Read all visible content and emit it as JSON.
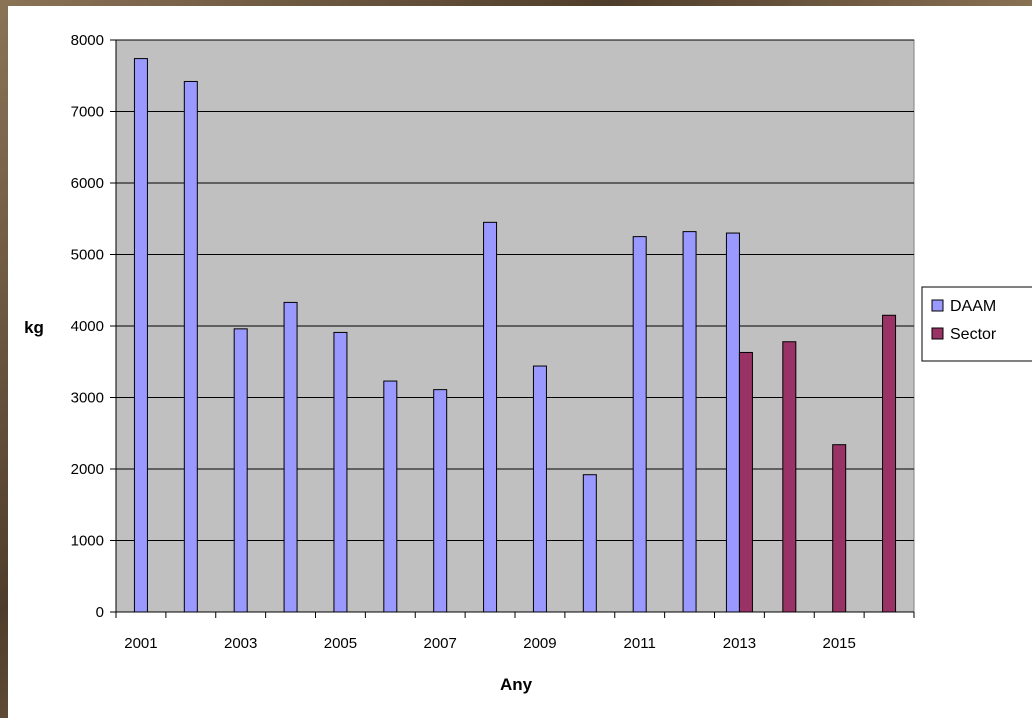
{
  "chart_data": {
    "type": "bar",
    "xlabel": "Any",
    "ylabel": "kg",
    "ylim": [
      0,
      8000
    ],
    "yticks": [
      0,
      1000,
      2000,
      3000,
      4000,
      5000,
      6000,
      7000,
      8000
    ],
    "categories": [
      "2001",
      "2002",
      "2003",
      "2004",
      "2005",
      "2006",
      "2007",
      "2008",
      "2009",
      "2010",
      "2011",
      "2012",
      "2013",
      "2014",
      "2015",
      "2016"
    ],
    "xtick_labels": [
      "2001",
      "2003",
      "2005",
      "2007",
      "2009",
      "2011",
      "2013",
      "2015"
    ],
    "series": [
      {
        "name": "DAAM",
        "color": "#9999ff",
        "values": [
          7740,
          7420,
          3960,
          4330,
          3910,
          3230,
          3110,
          5450,
          3440,
          1920,
          5250,
          5320,
          5300,
          null,
          null,
          null
        ]
      },
      {
        "name": "Sector",
        "color": "#993366",
        "values": [
          null,
          null,
          null,
          null,
          null,
          null,
          null,
          null,
          null,
          null,
          null,
          null,
          3630,
          3780,
          2340,
          4150
        ]
      }
    ],
    "grid": true,
    "legend_position": "right",
    "plot_background": "#c0c0c0"
  }
}
